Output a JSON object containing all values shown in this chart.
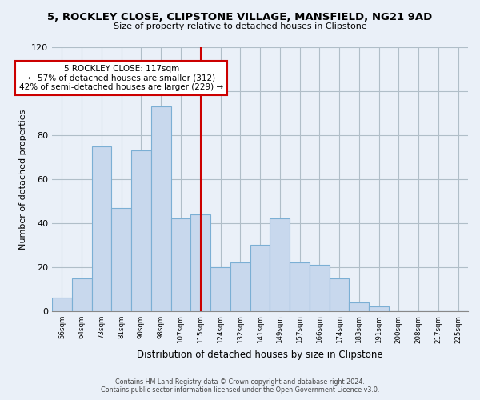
{
  "title_line1": "5, ROCKLEY CLOSE, CLIPSTONE VILLAGE, MANSFIELD, NG21 9AD",
  "title_line2": "Size of property relative to detached houses in Clipstone",
  "xlabel": "Distribution of detached houses by size in Clipstone",
  "ylabel": "Number of detached properties",
  "bin_labels": [
    "56sqm",
    "64sqm",
    "73sqm",
    "81sqm",
    "90sqm",
    "98sqm",
    "107sqm",
    "115sqm",
    "124sqm",
    "132sqm",
    "141sqm",
    "149sqm",
    "157sqm",
    "166sqm",
    "174sqm",
    "183sqm",
    "191sqm",
    "200sqm",
    "208sqm",
    "217sqm",
    "225sqm"
  ],
  "bar_heights": [
    6,
    15,
    75,
    47,
    73,
    93,
    42,
    44,
    20,
    22,
    30,
    42,
    22,
    21,
    15,
    4,
    2,
    0,
    0,
    0,
    0
  ],
  "bar_color": "#c8d8ed",
  "bar_edgecolor": "#7bafd4",
  "vline_color": "#cc0000",
  "annotation_text": "5 ROCKLEY CLOSE: 117sqm\n← 57% of detached houses are smaller (312)\n42% of semi-detached houses are larger (229) →",
  "annotation_box_color": "#ffffff",
  "annotation_box_edgecolor": "#cc0000",
  "ylim": [
    0,
    120
  ],
  "yticks": [
    0,
    20,
    40,
    60,
    80,
    100,
    120
  ],
  "footer_line1": "Contains HM Land Registry data © Crown copyright and database right 2024.",
  "footer_line2": "Contains public sector information licensed under the Open Government Licence v3.0.",
  "bg_color": "#eaf0f8",
  "plot_bg_color": "#eaf0f8",
  "grid_color": "#b0bec8"
}
